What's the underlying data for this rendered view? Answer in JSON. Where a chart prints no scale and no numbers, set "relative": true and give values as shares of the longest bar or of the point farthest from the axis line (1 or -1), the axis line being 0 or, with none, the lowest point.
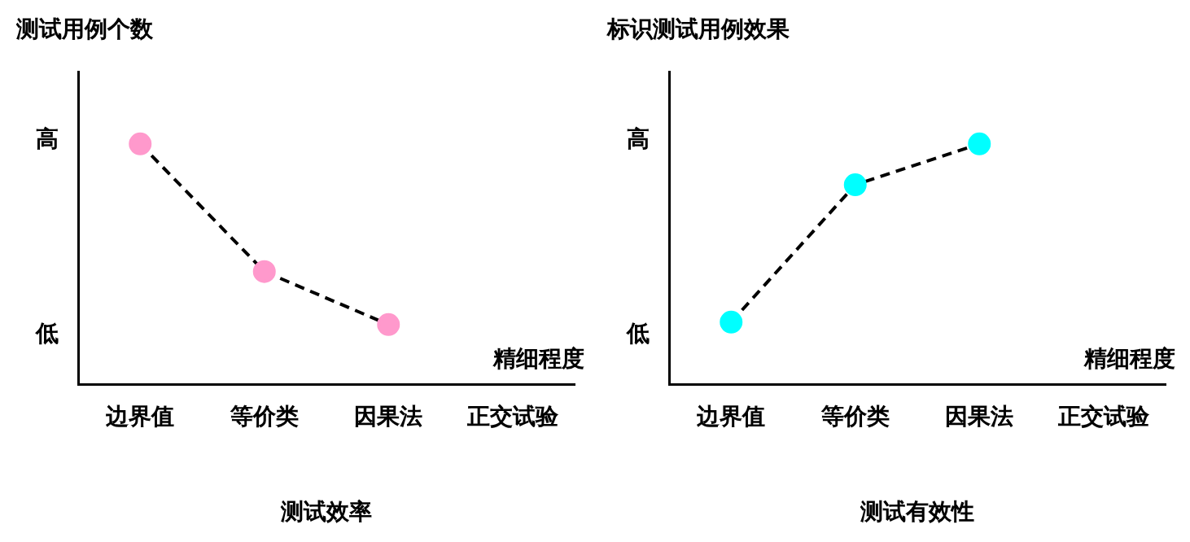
{
  "chart_data": [
    {
      "type": "line",
      "title": "测试效率",
      "xlabel": "精细程度",
      "ylabel": "测试用例个数",
      "annotations": [
        "高",
        "低"
      ],
      "categories": [
        "边界值",
        "等价类",
        "因果法",
        "正交试验"
      ],
      "series": [
        {
          "color": "#ff99cc",
          "values": [
            1,
            0.47,
            0.25,
            null
          ]
        }
      ],
      "relative": true,
      "grid": false,
      "legend": false,
      "marker": "circle",
      "line_style": "dashed"
    },
    {
      "type": "line",
      "title": "测试有效性",
      "xlabel": "精细程度",
      "ylabel": "标识测试用例效果",
      "annotations": [
        "高",
        "低"
      ],
      "categories": [
        "边界值",
        "等价类",
        "因果法",
        "正交试验"
      ],
      "series": [
        {
          "color": "#00ffff",
          "values": [
            0.26,
            0.83,
            1,
            null
          ]
        }
      ],
      "relative": true,
      "grid": false,
      "legend": false,
      "marker": "circle",
      "line_style": "dashed"
    }
  ]
}
